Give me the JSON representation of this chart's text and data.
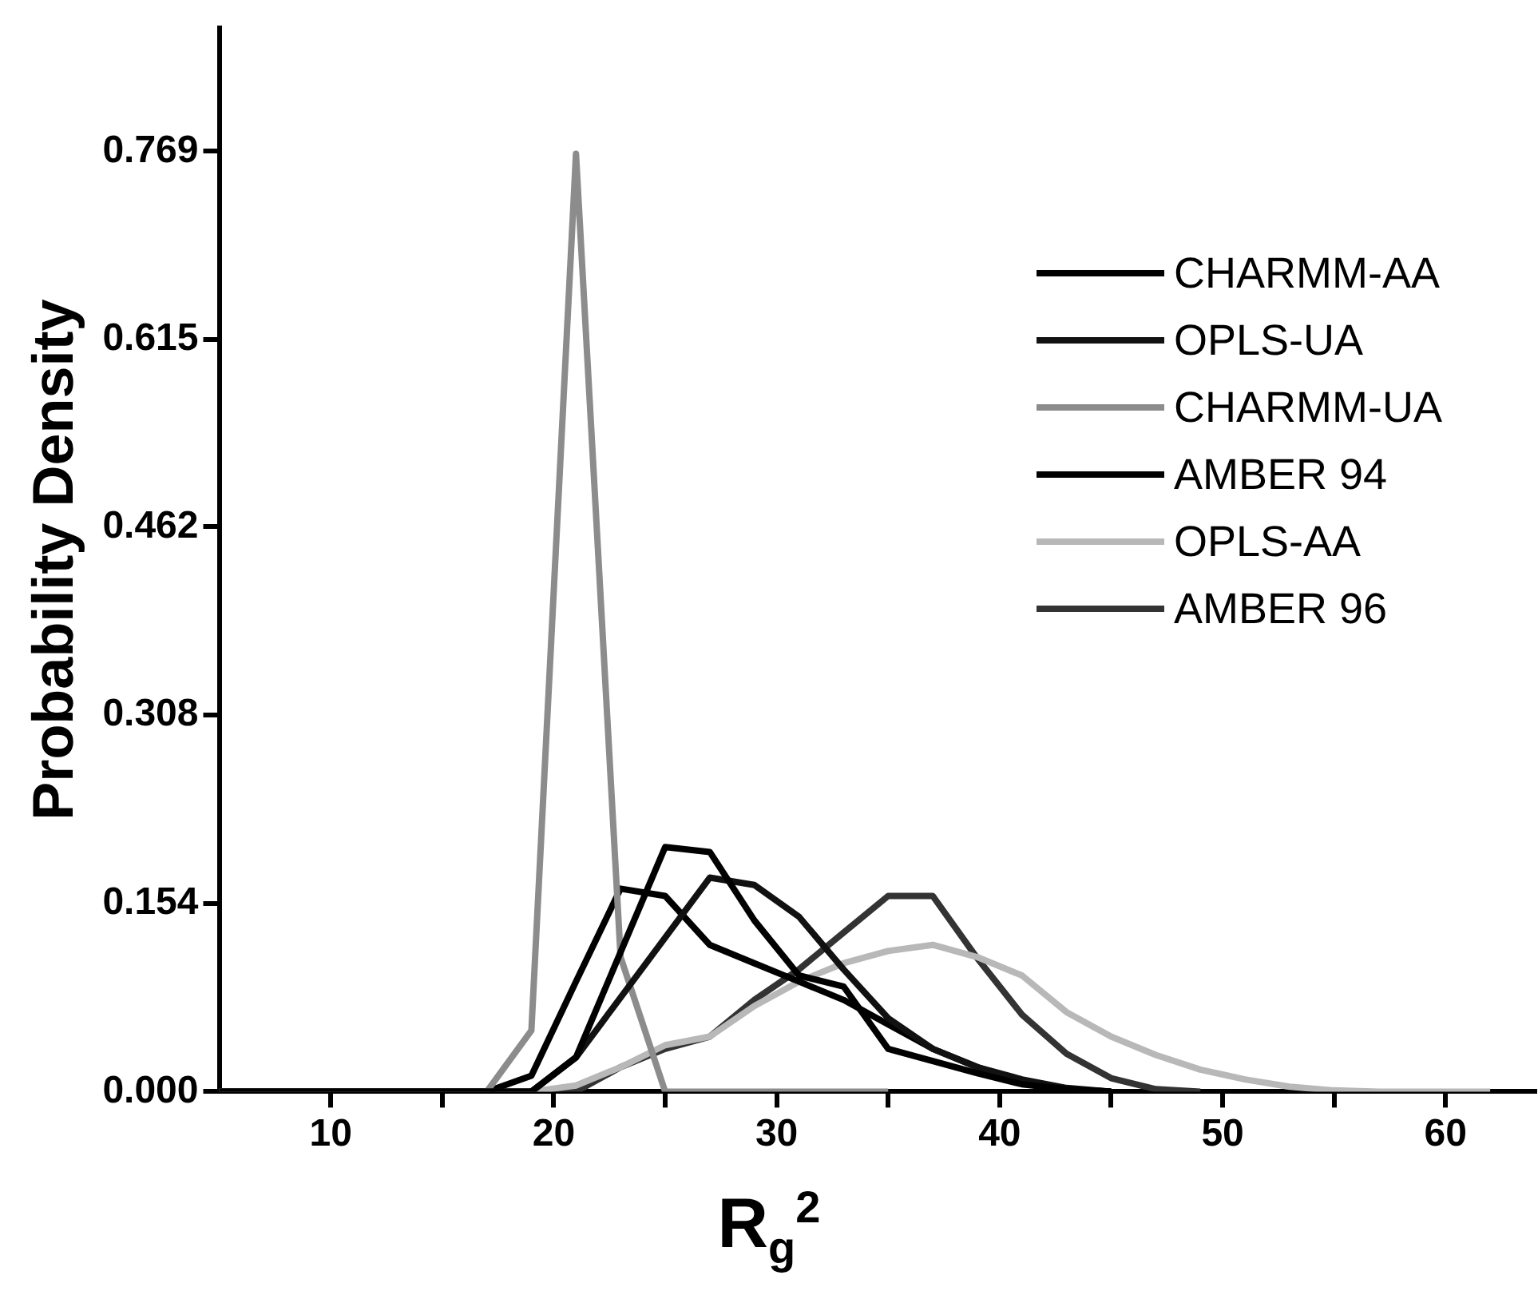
{
  "chart_data": {
    "type": "line",
    "xlabel": "R$_{g}$$^{2}$",
    "ylabel": "Probability Density",
    "xlim": [
      5,
      64
    ],
    "ylim": [
      0,
      0.87
    ],
    "xticks": [
      10,
      {
        "value": 15,
        "label": null
      },
      20,
      {
        "value": 25,
        "label": null
      },
      30,
      {
        "value": 35,
        "label": null
      },
      40,
      {
        "value": 45,
        "label": null
      },
      50,
      {
        "value": 55,
        "label": null
      },
      60
    ],
    "yticks": [
      {
        "value": 0,
        "label": "0.000"
      },
      0.154,
      0.308,
      0.462,
      0.615,
      0.769
    ],
    "legend": "top right",
    "marker": "none",
    "line_style": "solid",
    "series": [
      {
        "name": "CHARMM-AA",
        "color": "#000000",
        "x": [
          5,
          17,
          19,
          21,
          23,
          25,
          27,
          29,
          31,
          33,
          35,
          37,
          39,
          41,
          43,
          45
        ],
        "values": [
          0,
          0,
          0,
          0.028,
          0.114,
          0.2,
          0.196,
          0.14,
          0.095,
          0.086,
          0.035,
          0.025,
          0.015,
          0.006,
          0.002,
          0
        ]
      },
      {
        "name": "OPLS-UA",
        "color": "#111111",
        "x": [
          5,
          19,
          21,
          23,
          25,
          27,
          29,
          31,
          33,
          35,
          37,
          39,
          41,
          43,
          45
        ],
        "values": [
          0,
          0,
          0.028,
          0.077,
          0.126,
          0.175,
          0.169,
          0.143,
          0.1,
          0.06,
          0.035,
          0.02,
          0.01,
          0.003,
          0
        ]
      },
      {
        "name": "CHARMM-UA",
        "color": "#8c8c8c",
        "x": [
          5,
          17,
          19,
          21,
          23,
          25,
          35
        ],
        "values": [
          0,
          0,
          0.05,
          0.767,
          0.11,
          0,
          0
        ]
      },
      {
        "name": "AMBER 94",
        "color": "#000000",
        "x": [
          5,
          17,
          19,
          21,
          23,
          25,
          27,
          29,
          31,
          33,
          35,
          37,
          39,
          41,
          43,
          45
        ],
        "values": [
          0,
          0,
          0.013,
          0.09,
          0.166,
          0.16,
          0.12,
          0.105,
          0.09,
          0.075,
          0.055,
          0.035,
          0.02,
          0.008,
          0.002,
          0
        ]
      },
      {
        "name": "OPLS-AA",
        "color": "#b8b8b8",
        "x": [
          5,
          19,
          21,
          23,
          25,
          27,
          29,
          31,
          33,
          35,
          37,
          39,
          41,
          43,
          45,
          47,
          49,
          51,
          53,
          55,
          57,
          62
        ],
        "values": [
          0,
          0,
          0.005,
          0.02,
          0.038,
          0.045,
          0.07,
          0.09,
          0.105,
          0.115,
          0.12,
          0.11,
          0.095,
          0.065,
          0.045,
          0.03,
          0.018,
          0.01,
          0.004,
          0.001,
          0,
          0
        ]
      },
      {
        "name": "AMBER 96",
        "color": "#333333",
        "x": [
          5,
          21,
          23,
          25,
          27,
          29,
          31,
          33,
          35,
          37,
          39,
          41,
          43,
          45,
          47,
          49
        ],
        "values": [
          0,
          0,
          0.02,
          0.035,
          0.045,
          0.075,
          0.1,
          0.13,
          0.16,
          0.16,
          0.109,
          0.063,
          0.031,
          0.011,
          0.002,
          0
        ]
      }
    ]
  }
}
